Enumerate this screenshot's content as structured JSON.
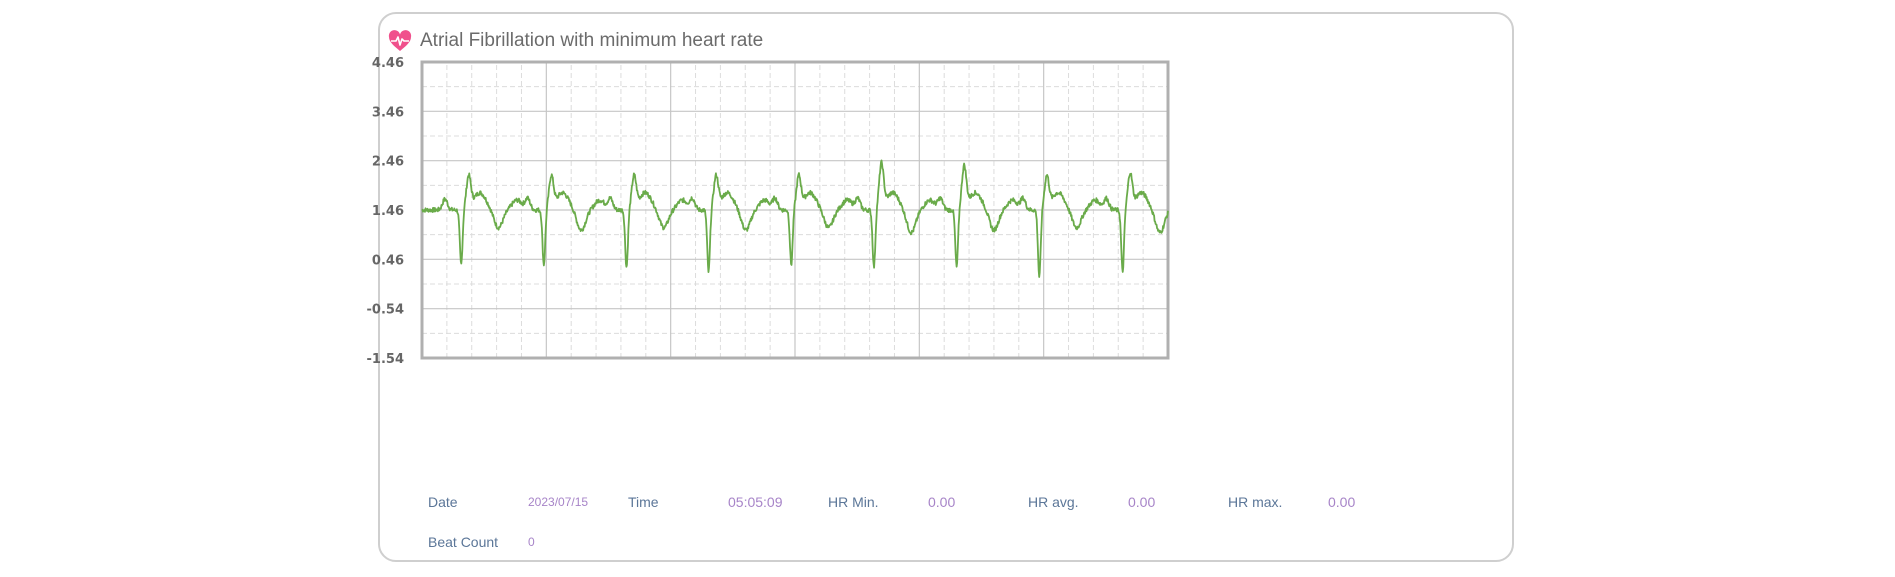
{
  "card": {
    "title": "Atrial Fibrillation with minimum heart rate",
    "icon": "heart-icon",
    "icon_color": "#f0508c"
  },
  "stats": {
    "date_label": "Date",
    "date_value": "2023/07/15",
    "time_label": "Time",
    "time_value": "05:05:09",
    "hr_min_label": "HR Min.",
    "hr_min_value": "0.00",
    "hr_avg_label": "HR avg.",
    "hr_avg_value": "0.00",
    "hr_max_label": "HR max.",
    "hr_max_value": "0.00",
    "beat_count_label": "Beat Count",
    "beat_count_value": "0"
  },
  "chart_data": {
    "type": "line",
    "line_color": "#6aab4a",
    "grid": true,
    "yticks": [
      "4.46",
      "3.46",
      "2.46",
      "1.46",
      "0.46",
      "-0.54",
      "-1.54"
    ],
    "ylim": [
      -1.54,
      4.46
    ],
    "xlim": [
      0,
      6
    ],
    "x_major_ticks": [
      0,
      1,
      2,
      3,
      4,
      5,
      6
    ],
    "x_minor_per_major": 5,
    "baseline": 1.46,
    "beats": [
      {
        "t": 0.345,
        "r": 2.1,
        "s": 0.35,
        "twave": 1.1
      },
      {
        "t": 1.01,
        "r": 2.1,
        "s": 0.35,
        "twave": 1.05
      },
      {
        "t": 1.675,
        "r": 2.1,
        "s": 0.3,
        "twave": 1.1
      },
      {
        "t": 2.335,
        "r": 2.1,
        "s": 0.2,
        "twave": 1.05
      },
      {
        "t": 3.0,
        "r": 2.1,
        "s": 0.35,
        "twave": 1.1
      },
      {
        "t": 3.665,
        "r": 2.35,
        "s": 0.3,
        "twave": 1.0
      },
      {
        "t": 4.33,
        "r": 2.3,
        "s": 0.3,
        "twave": 1.05
      },
      {
        "t": 4.995,
        "r": 2.1,
        "s": 0.1,
        "twave": 1.1
      },
      {
        "t": 5.665,
        "r": 2.15,
        "s": 0.2,
        "twave": 1.0
      }
    ]
  }
}
